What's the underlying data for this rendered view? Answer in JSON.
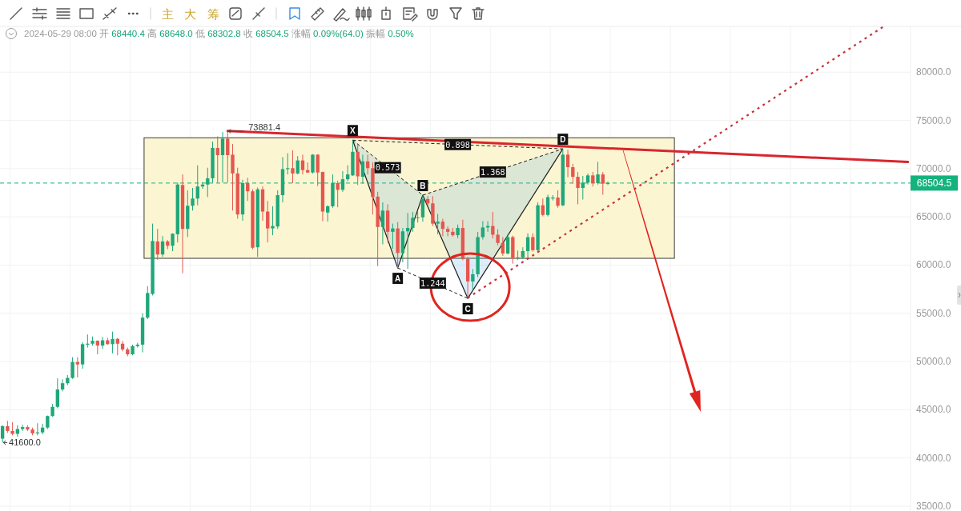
{
  "chart_data": {
    "type": "candlestick",
    "subtitle": "2024-05-29 08:00 开 68440.4 高 68648.0 低 68302.8 收 68504.5 涨幅 0.09%(64.0) 振幅 0.50%",
    "categories": [
      null,
      null,
      null,
      null,
      null,
      null,
      null,
      null,
      null,
      null,
      null,
      null,
      null,
      null,
      null,
      null,
      null,
      null,
      null,
      null,
      null,
      null,
      null,
      null,
      null,
      null,
      null,
      null,
      null,
      null,
      null,
      null,
      null,
      null,
      null,
      null,
      null,
      null,
      null,
      null,
      null,
      null,
      null,
      null,
      null,
      null,
      null,
      null,
      null,
      null,
      null,
      null,
      null,
      null,
      null,
      null,
      null,
      null,
      null,
      null,
      null,
      null,
      null,
      null,
      null,
      null,
      null,
      null,
      null,
      null,
      null,
      null,
      null,
      null,
      null,
      null,
      null,
      null,
      null,
      null,
      null,
      null,
      null,
      null,
      null,
      null,
      null,
      null,
      null,
      null,
      null,
      null,
      null,
      null,
      null,
      null,
      null,
      null,
      null,
      null,
      null,
      null,
      null,
      null,
      null,
      null,
      null,
      null,
      null,
      null,
      null,
      null,
      null,
      null,
      null,
      null,
      null,
      null,
      null,
      null,
      null,
      null,
      null,
      null,
      null,
      null,
      null,
      null,
      null,
      null,
      null,
      null,
      null,
      null,
      null,
      null,
      null,
      null,
      null,
      null,
      null,
      null,
      null,
      null,
      null,
      null,
      null,
      null,
      null,
      null,
      null,
      null,
      null,
      null,
      null,
      null,
      null,
      null,
      null,
      null,
      null,
      null,
      null,
      null,
      null,
      null,
      null,
      null,
      null,
      null,
      null,
      null,
      null,
      null,
      null,
      null,
      null,
      null,
      null,
      null,
      null,
      null
    ],
    "ohlc": [
      [
        42000,
        43400,
        41600.0,
        43300
      ],
      [
        43300,
        43850,
        42600,
        42800
      ],
      [
        42800,
        43700,
        42350,
        42500
      ],
      [
        42500,
        43400,
        42200,
        43000
      ],
      [
        43000,
        43450,
        42800,
        43200
      ],
      [
        43200,
        43400,
        42800,
        42950
      ],
      [
        42950,
        43150,
        42350,
        42550
      ],
      [
        42550,
        43600,
        42350,
        42650
      ],
      [
        42650,
        43550,
        42450,
        43150
      ],
      [
        43150,
        44400,
        43000,
        44350
      ],
      [
        44350,
        45600,
        44250,
        45300
      ],
      [
        45300,
        48250,
        45150,
        47100
      ],
      [
        47100,
        48150,
        46900,
        47750
      ],
      [
        47750,
        48600,
        47550,
        48300
      ],
      [
        48300,
        50450,
        48200,
        49950
      ],
      [
        49950,
        50450,
        48350,
        49700
      ],
      [
        49700,
        52000,
        49250,
        51800
      ],
      [
        51750,
        52800,
        51450,
        51850
      ],
      [
        51850,
        52600,
        51650,
        52150
      ],
      [
        52150,
        52200,
        50750,
        51650
      ],
      [
        51650,
        52550,
        51300,
        52200
      ],
      [
        52200,
        52450,
        51750,
        51800
      ],
      [
        51800,
        53100,
        50850,
        52350
      ],
      [
        52350,
        52450,
        50650,
        51850
      ],
      [
        51850,
        52150,
        51050,
        51250
      ],
      [
        51250,
        51450,
        50550,
        50750
      ],
      [
        50750,
        51750,
        50650,
        51600
      ],
      [
        51600,
        51950,
        51450,
        51750
      ],
      [
        51750,
        55000,
        50950,
        54550
      ],
      [
        54550,
        57800,
        54400,
        57100
      ],
      [
        57000,
        64300,
        56850,
        62500
      ],
      [
        62450,
        63750,
        60550,
        61100
      ],
      [
        61100,
        63000,
        60850,
        62450
      ],
      [
        62450,
        62600,
        61650,
        62000
      ],
      [
        62000,
        63300,
        61450,
        63250
      ],
      [
        63200,
        68550,
        62350,
        68350
      ],
      [
        68300,
        69400,
        59150,
        63750
      ],
      [
        63750,
        67750,
        62900,
        66150
      ],
      [
        66150,
        68000,
        65650,
        66900
      ],
      [
        66900,
        70350,
        66200,
        68150
      ],
      [
        68150,
        68600,
        67900,
        68350
      ],
      [
        68350,
        70100,
        67050,
        69000
      ],
      [
        69000,
        72800,
        68550,
        72150
      ],
      [
        72150,
        73350,
        68550,
        71400
      ],
      [
        71400,
        73800,
        68550,
        73100
      ],
      [
        73100,
        73881.4,
        68550,
        71400
      ],
      [
        71450,
        72550,
        65650,
        69500
      ],
      [
        69500,
        70100,
        64800,
        65250
      ],
      [
        65250,
        68850,
        64600,
        68500
      ],
      [
        68500,
        69050,
        66650,
        67650
      ],
      [
        67650,
        67850,
        61650,
        61800
      ],
      [
        61850,
        68050,
        60850,
        67850
      ],
      [
        67850,
        68150,
        64600,
        65550
      ],
      [
        65550,
        66650,
        62350,
        63800
      ],
      [
        63800,
        66100,
        63100,
        64050
      ],
      [
        64000,
        67750,
        63750,
        67250
      ],
      [
        67250,
        71200,
        66500,
        69950
      ],
      [
        69950,
        71600,
        69400,
        70050
      ],
      [
        70050,
        71900,
        68500,
        69500
      ],
      [
        69500,
        71300,
        69400,
        70850
      ],
      [
        70850,
        71450,
        69400,
        69850
      ],
      [
        69850,
        70650,
        69550,
        69600
      ],
      [
        69600,
        71500,
        69500,
        71450
      ],
      [
        71450,
        71500,
        68200,
        69600
      ],
      [
        69650,
        69700,
        64550,
        65550
      ],
      [
        65450,
        66200,
        64500,
        66100
      ],
      [
        66100,
        69400,
        65950,
        68500
      ],
      [
        68500,
        68750,
        66000,
        67800
      ],
      [
        67800,
        69750,
        67600,
        68900
      ],
      [
        68900,
        70350,
        68700,
        69400
      ],
      [
        69300,
        72950,
        69250,
        71750
      ],
      [
        71750,
        72450,
        68300,
        69200
      ],
      [
        69150,
        71450,
        68450,
        70750
      ],
      [
        70750,
        71450,
        69400,
        70050
      ],
      [
        70050,
        70650,
        65250,
        67050
      ],
      [
        67100,
        67600,
        59900,
        63950
      ],
      [
        63950,
        66500,
        62150,
        65650
      ],
      [
        65650,
        66300,
        62300,
        63450
      ],
      [
        63450,
        64300,
        61700,
        63800
      ],
      [
        63800,
        64450,
        59700,
        61250
      ],
      [
        61250,
        63850,
        60300,
        63500
      ],
      [
        63500,
        65400,
        59600,
        63850
      ],
      [
        63850,
        65500,
        63450,
        64900
      ],
      [
        64900,
        65550,
        64400,
        64950
      ],
      [
        64950,
        67250,
        64500,
        66850
      ],
      [
        66850,
        67150,
        66150,
        66400
      ],
      [
        66400,
        67150,
        64050,
        64300
      ],
      [
        64300,
        65300,
        63200,
        64500
      ],
      [
        64500,
        64800,
        63000,
        63750
      ],
      [
        63750,
        64000,
        63000,
        63450
      ],
      [
        63450,
        63850,
        62950,
        63100
      ],
      [
        63100,
        64200,
        62800,
        63850
      ],
      [
        63850,
        64700,
        60500,
        60650
      ],
      [
        60650,
        60850,
        56550,
        58300
      ],
      [
        58300,
        59600,
        57400,
        59050
      ],
      [
        59050,
        63450,
        58750,
        62900
      ],
      [
        62900,
        64550,
        62650,
        63900
      ],
      [
        63900,
        64550,
        63450,
        64050
      ],
      [
        64050,
        65500,
        62750,
        63150
      ],
      [
        63150,
        63700,
        62050,
        62300
      ],
      [
        62300,
        62900,
        60950,
        61200
      ],
      [
        61200,
        63200,
        61100,
        62900
      ],
      [
        62900,
        63050,
        60150,
        60750
      ],
      [
        60750,
        61500,
        60550,
        60800
      ],
      [
        60800,
        61850,
        60650,
        61450
      ],
      [
        61450,
        63300,
        60750,
        62900
      ],
      [
        62900,
        63300,
        61400,
        61550
      ],
      [
        61550,
        66500,
        61350,
        66200
      ],
      [
        66200,
        66900,
        65050,
        65200
      ],
      [
        65200,
        67300,
        65050,
        67050
      ],
      [
        66900,
        67250,
        66700,
        67000
      ],
      [
        67000,
        67750,
        65950,
        66150
      ],
      [
        66200,
        72050,
        66100,
        71450
      ],
      [
        71450,
        71950,
        69100,
        70150
      ],
      [
        70150,
        70500,
        68450,
        69150
      ],
      [
        69150,
        69650,
        66300,
        68000
      ],
      [
        68000,
        69250,
        66800,
        68550
      ],
      [
        68550,
        69500,
        68350,
        69300
      ],
      [
        69300,
        69650,
        68150,
        68500
      ],
      [
        68500,
        70700,
        68350,
        69400
      ],
      [
        69400,
        69650,
        67300,
        68450
      ],
      [
        68440.4,
        68648.0,
        68302.8,
        68504.5
      ],
      null,
      null,
      null,
      null,
      null,
      null,
      null,
      null,
      null,
      null,
      null,
      null,
      null,
      null,
      null,
      null,
      null,
      null,
      null,
      null,
      null,
      null,
      null,
      null,
      null,
      null,
      null,
      null,
      null,
      null,
      null,
      null,
      null,
      null,
      null,
      null,
      null,
      null,
      null,
      null,
      null,
      null,
      null,
      null,
      null,
      null,
      null,
      null,
      null,
      null,
      null,
      null,
      null,
      null,
      null,
      null,
      null,
      null,
      null,
      null
    ],
    "colors": [
      "#1fa77a",
      "#e4574f",
      "#e4574f",
      "#1fa77a",
      "#1fa77a",
      "#e4574f",
      "#e4574f",
      "#1fa77a",
      "#1fa77a",
      "#1fa77a",
      "#1fa77a",
      "#1fa77a",
      "#1fa77a",
      "#1fa77a",
      "#1fa77a",
      "#e4574f",
      "#1fa77a",
      "#1fa77a",
      "#1fa77a",
      "#e4574f",
      "#1fa77a",
      "#e4574f",
      "#1fa77a",
      "#e4574f",
      "#e4574f",
      "#e4574f",
      "#1fa77a",
      "#1fa77a",
      "#1fa77a",
      "#1fa77a",
      "#1fa77a",
      "#e4574f",
      "#1fa77a",
      "#e4574f",
      "#1fa77a",
      "#1fa77a",
      "#e4574f",
      "#1fa77a",
      "#1fa77a",
      "#1fa77a",
      "#1fa77a",
      "#1fa77a",
      "#1fa77a",
      "#e4574f",
      "#1fa77a",
      "#e4574f",
      "#e4574f",
      "#e4574f",
      "#1fa77a",
      "#e4574f",
      "#e4574f",
      "#1fa77a",
      "#e4574f",
      "#e4574f",
      "#1fa77a",
      "#1fa77a",
      "#1fa77a",
      "#1fa77a",
      "#e4574f",
      "#1fa77a",
      "#e4574f",
      "#e4574f",
      "#1fa77a",
      "#e4574f",
      "#e4574f",
      "#1fa77a",
      "#1fa77a",
      "#e4574f",
      "#1fa77a",
      "#1fa77a",
      "#1fa77a",
      "#e4574f",
      "#1fa77a",
      "#e4574f",
      "#e4574f",
      "#e4574f",
      "#1fa77a",
      "#e4574f",
      "#1fa77a",
      "#e4574f",
      "#1fa77a",
      "#1fa77a",
      "#1fa77a",
      "#1fa77a",
      "#1fa77a",
      "#e4574f",
      "#e4574f",
      "#1fa77a",
      "#e4574f",
      "#e4574f",
      "#e4574f",
      "#1fa77a",
      "#e4574f",
      "#e4574f",
      "#1fa77a",
      "#1fa77a",
      "#1fa77a",
      "#1fa77a",
      "#e4574f",
      "#e4574f",
      "#e4574f",
      "#1fa77a",
      "#e4574f",
      "#1fa77a",
      "#1fa77a",
      "#1fa77a",
      "#e4574f",
      "#1fa77a",
      "#e4574f",
      "#1fa77a",
      "#1fa77a",
      "#e4574f",
      "#1fa77a",
      "#e4574f",
      "#e4574f",
      "#e4574f",
      "#1fa77a",
      "#1fa77a",
      "#e4574f",
      "#1fa77a",
      "#e4574f",
      "#1fa77a",
      null,
      null,
      null,
      null,
      null,
      null,
      null,
      null,
      null,
      null,
      null,
      null,
      null,
      null,
      null,
      null,
      null,
      null,
      null,
      null,
      null,
      null,
      null,
      null,
      null,
      null,
      null,
      null,
      null,
      null,
      null,
      null,
      null,
      null,
      null,
      null,
      null,
      null,
      null,
      null,
      null,
      null,
      null,
      null,
      null,
      null,
      null,
      null,
      null,
      null,
      null,
      null,
      null,
      null,
      null,
      null,
      null,
      null,
      null,
      null
    ],
    "series": [
      {
        "type": "line",
        "color": "#d8262d",
        "values": [
          null,
          null,
          null,
          null,
          null,
          null,
          null,
          null,
          null,
          null,
          null,
          null,
          null,
          null,
          null,
          null,
          null,
          null,
          null,
          null,
          null,
          null,
          null,
          null,
          null,
          null,
          null,
          null,
          null,
          null,
          null,
          null,
          null,
          null,
          null,
          null,
          null,
          null,
          null,
          null,
          null,
          null,
          null,
          null,
          null,
          73900,
          null,
          null,
          null,
          null,
          null,
          null,
          null,
          null,
          null,
          null,
          null,
          null,
          null,
          null,
          null,
          null,
          null,
          null,
          null,
          null,
          null,
          null,
          null,
          null,
          null,
          null,
          null,
          null,
          null,
          null,
          null,
          null,
          null,
          null,
          null,
          null,
          null,
          null,
          null,
          null,
          null,
          null,
          null,
          null,
          null,
          null,
          null,
          null,
          null,
          null,
          null,
          null,
          null,
          null,
          null,
          null,
          null,
          null,
          null,
          null,
          null,
          null,
          null,
          null,
          null,
          null,
          null,
          null,
          null,
          null,
          null,
          null,
          null,
          null,
          null,
          null,
          null,
          null,
          null,
          null,
          null,
          null,
          null,
          null,
          null,
          null,
          null,
          null,
          null,
          null,
          null,
          null,
          null,
          null,
          null,
          null,
          null,
          null,
          null,
          null,
          null,
          null,
          null,
          null,
          null,
          null,
          null,
          null,
          null,
          null,
          null,
          null,
          null,
          null,
          null,
          null,
          null,
          null,
          null,
          null,
          null,
          null,
          null,
          null,
          null,
          null,
          null,
          null,
          null,
          null,
          null,
          null,
          null,
          null,
          null,
          70700
        ]
      },
      {
        "type": "line",
        "color": "#c8323a",
        "line_style": "dotted",
        "values": [
          null,
          null,
          null,
          null,
          null,
          null,
          null,
          null,
          null,
          null,
          null,
          null,
          null,
          null,
          null,
          null,
          null,
          null,
          null,
          null,
          null,
          null,
          null,
          null,
          null,
          null,
          null,
          null,
          null,
          null,
          null,
          null,
          null,
          null,
          null,
          null,
          null,
          null,
          null,
          null,
          null,
          null,
          null,
          null,
          null,
          null,
          null,
          null,
          null,
          null,
          null,
          null,
          null,
          null,
          null,
          null,
          null,
          null,
          null,
          null,
          null,
          null,
          null,
          null,
          null,
          null,
          null,
          null,
          null,
          null,
          null,
          null,
          null,
          null,
          null,
          null,
          null,
          null,
          null,
          null,
          null,
          null,
          null,
          null,
          null,
          null,
          null,
          null,
          null,
          null,
          null,
          null,
          null,
          56600,
          null,
          null,
          null,
          null,
          null,
          null,
          null,
          null,
          null,
          null,
          null,
          null,
          null,
          null,
          null,
          null,
          null,
          null,
          null,
          null,
          null,
          null,
          null,
          null,
          null,
          null,
          null,
          null,
          null,
          null,
          null,
          null,
          null,
          null,
          null,
          null,
          null,
          null,
          null,
          null,
          null,
          null,
          null,
          null,
          null,
          null,
          null,
          null,
          null,
          null,
          null,
          null,
          null,
          null,
          null,
          null,
          null,
          null,
          null,
          null,
          null,
          null,
          null,
          null,
          null,
          null,
          null,
          null,
          null,
          null,
          null,
          null,
          null,
          null,
          null,
          null,
          null,
          null,
          null,
          null,
          null,
          null,
          84700,
          null,
          null,
          null,
          null,
          null
        ]
      }
    ],
    "ylim": [
      34500,
      84750
    ],
    "yticks": [
      {
        "value": 35000,
        "label": "35000.0"
      },
      {
        "value": 40000,
        "label": "40000.0"
      },
      {
        "value": 45000,
        "label": "45000.0"
      },
      {
        "value": 50000,
        "label": "50000.0"
      },
      {
        "value": 55000,
        "label": "55000.0"
      },
      {
        "value": 60000,
        "label": "60000.0"
      },
      {
        "value": 65000,
        "label": "65000.0"
      },
      {
        "value": 70000,
        "label": "70000.0"
      },
      {
        "value": 75000,
        "label": "75000.0"
      },
      {
        "value": 80000,
        "label": "80000.0"
      }
    ],
    "tick_labels": "y",
    "grid": true,
    "ref_lines": [
      {
        "axis": "y",
        "value": 68504.5,
        "label": "68504.5",
        "color": "#14b37d",
        "line_style": "dashed"
      }
    ],
    "bands": [
      {
        "axis": "y",
        "from": 60700,
        "to": 73200,
        "color": "#fcf5d2"
      }
    ],
    "annotations": [
      "主",
      "大",
      "筹",
      {
        "text": "73881.4",
        "y": 73881.4
      },
      "41600.0",
      {
        "text": "X",
        "y": 72950
      },
      {
        "text": "A",
        "y": 59700
      },
      {
        "text": "B",
        "y": 67250
      },
      {
        "text": "C",
        "y": 56550
      },
      {
        "text": "D",
        "y": 72050
      },
      "0.573",
      "0.898",
      "1.368",
      "1.244"
    ]
  }
}
